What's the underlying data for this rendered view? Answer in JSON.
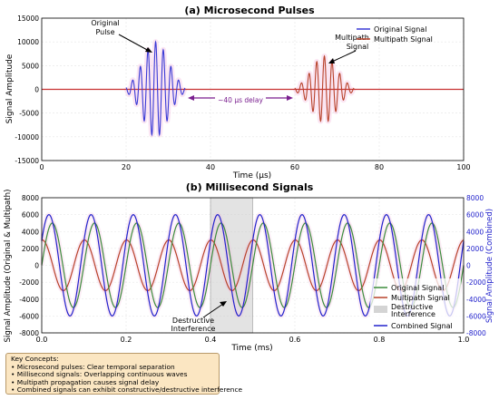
{
  "chart_data": [
    {
      "type": "line",
      "title": "(a) Microsecond Pulses",
      "xlabel": "Time (μs)",
      "ylabel": "Signal Amplitude",
      "xlim": [
        0,
        100
      ],
      "ylim": [
        -15000,
        15000
      ],
      "xticks": [
        "0",
        "20",
        "40",
        "60",
        "80",
        "100"
      ],
      "yticks": [
        "-15000",
        "-10000",
        "-5000",
        "0",
        "5000",
        "10000",
        "15000"
      ],
      "grid": true,
      "legend_position": "top-right",
      "series": [
        {
          "name": "Original Signal",
          "color": "#3a3ad6",
          "pulse_center": 27,
          "pulse_peak": 10000,
          "x_range": [
            20,
            34
          ]
        },
        {
          "name": "Multipath Signal",
          "color": "#b8422a",
          "pulse_center": 67,
          "pulse_peak": 7000,
          "x_range": [
            60,
            74
          ]
        }
      ],
      "baseline_color": "#c83232",
      "annotations": [
        {
          "text": "Original\nPulse"
        },
        {
          "text": "Multipath\nSignal"
        },
        {
          "text": "~40 μs delay",
          "color": "#7a1f8f"
        }
      ]
    },
    {
      "type": "line",
      "title": "(b) Millisecond Signals",
      "xlabel": "Time (ms)",
      "ylabel": "Signal Amplitude (Original & Multipath)",
      "ylabel_right": "Signal Amplitude (Combined)",
      "xlim": [
        0,
        1.0
      ],
      "ylim": [
        -8000,
        8000
      ],
      "ylim_right": [
        -8000,
        8000
      ],
      "xticks": [
        "0.0",
        "0.2",
        "0.4",
        "0.6",
        "0.8",
        "1.0"
      ],
      "yticks": [
        "-8000",
        "-6000",
        "-4000",
        "-2000",
        "0",
        "2000",
        "4000",
        "6000",
        "8000"
      ],
      "yticks_right": [
        "-8000",
        "-6000",
        "-4000",
        "-2000",
        "0",
        "2000",
        "4000",
        "6000",
        "8000"
      ],
      "grid": true,
      "legend_position": "center-right",
      "frequency_cycles": 10,
      "series": [
        {
          "name": "Original Signal",
          "color": "#3c8c3c",
          "amplitude": 5000,
          "phase": 0
        },
        {
          "name": "Multipath Signal",
          "color": "#b8422a",
          "amplitude": 3000,
          "phase": 1.5
        },
        {
          "name": "Combined Signal",
          "color": "#2222cc",
          "amplitude": 6000,
          "phase": 0.5
        }
      ],
      "shaded_region": {
        "x": [
          0.4,
          0.5
        ],
        "label": "Destructive\nInterference"
      },
      "annotations": [
        {
          "text": "Destructive\nInterference"
        }
      ]
    }
  ],
  "key_concepts": {
    "title": "Key Concepts:",
    "items": [
      "• Microsecond pulses: Clear temporal separation",
      "• Millisecond signals: Overlapping continuous waves",
      "• Multipath propagation causes signal delay",
      "• Combined signals can exhibit constructive/destructive interference"
    ]
  }
}
